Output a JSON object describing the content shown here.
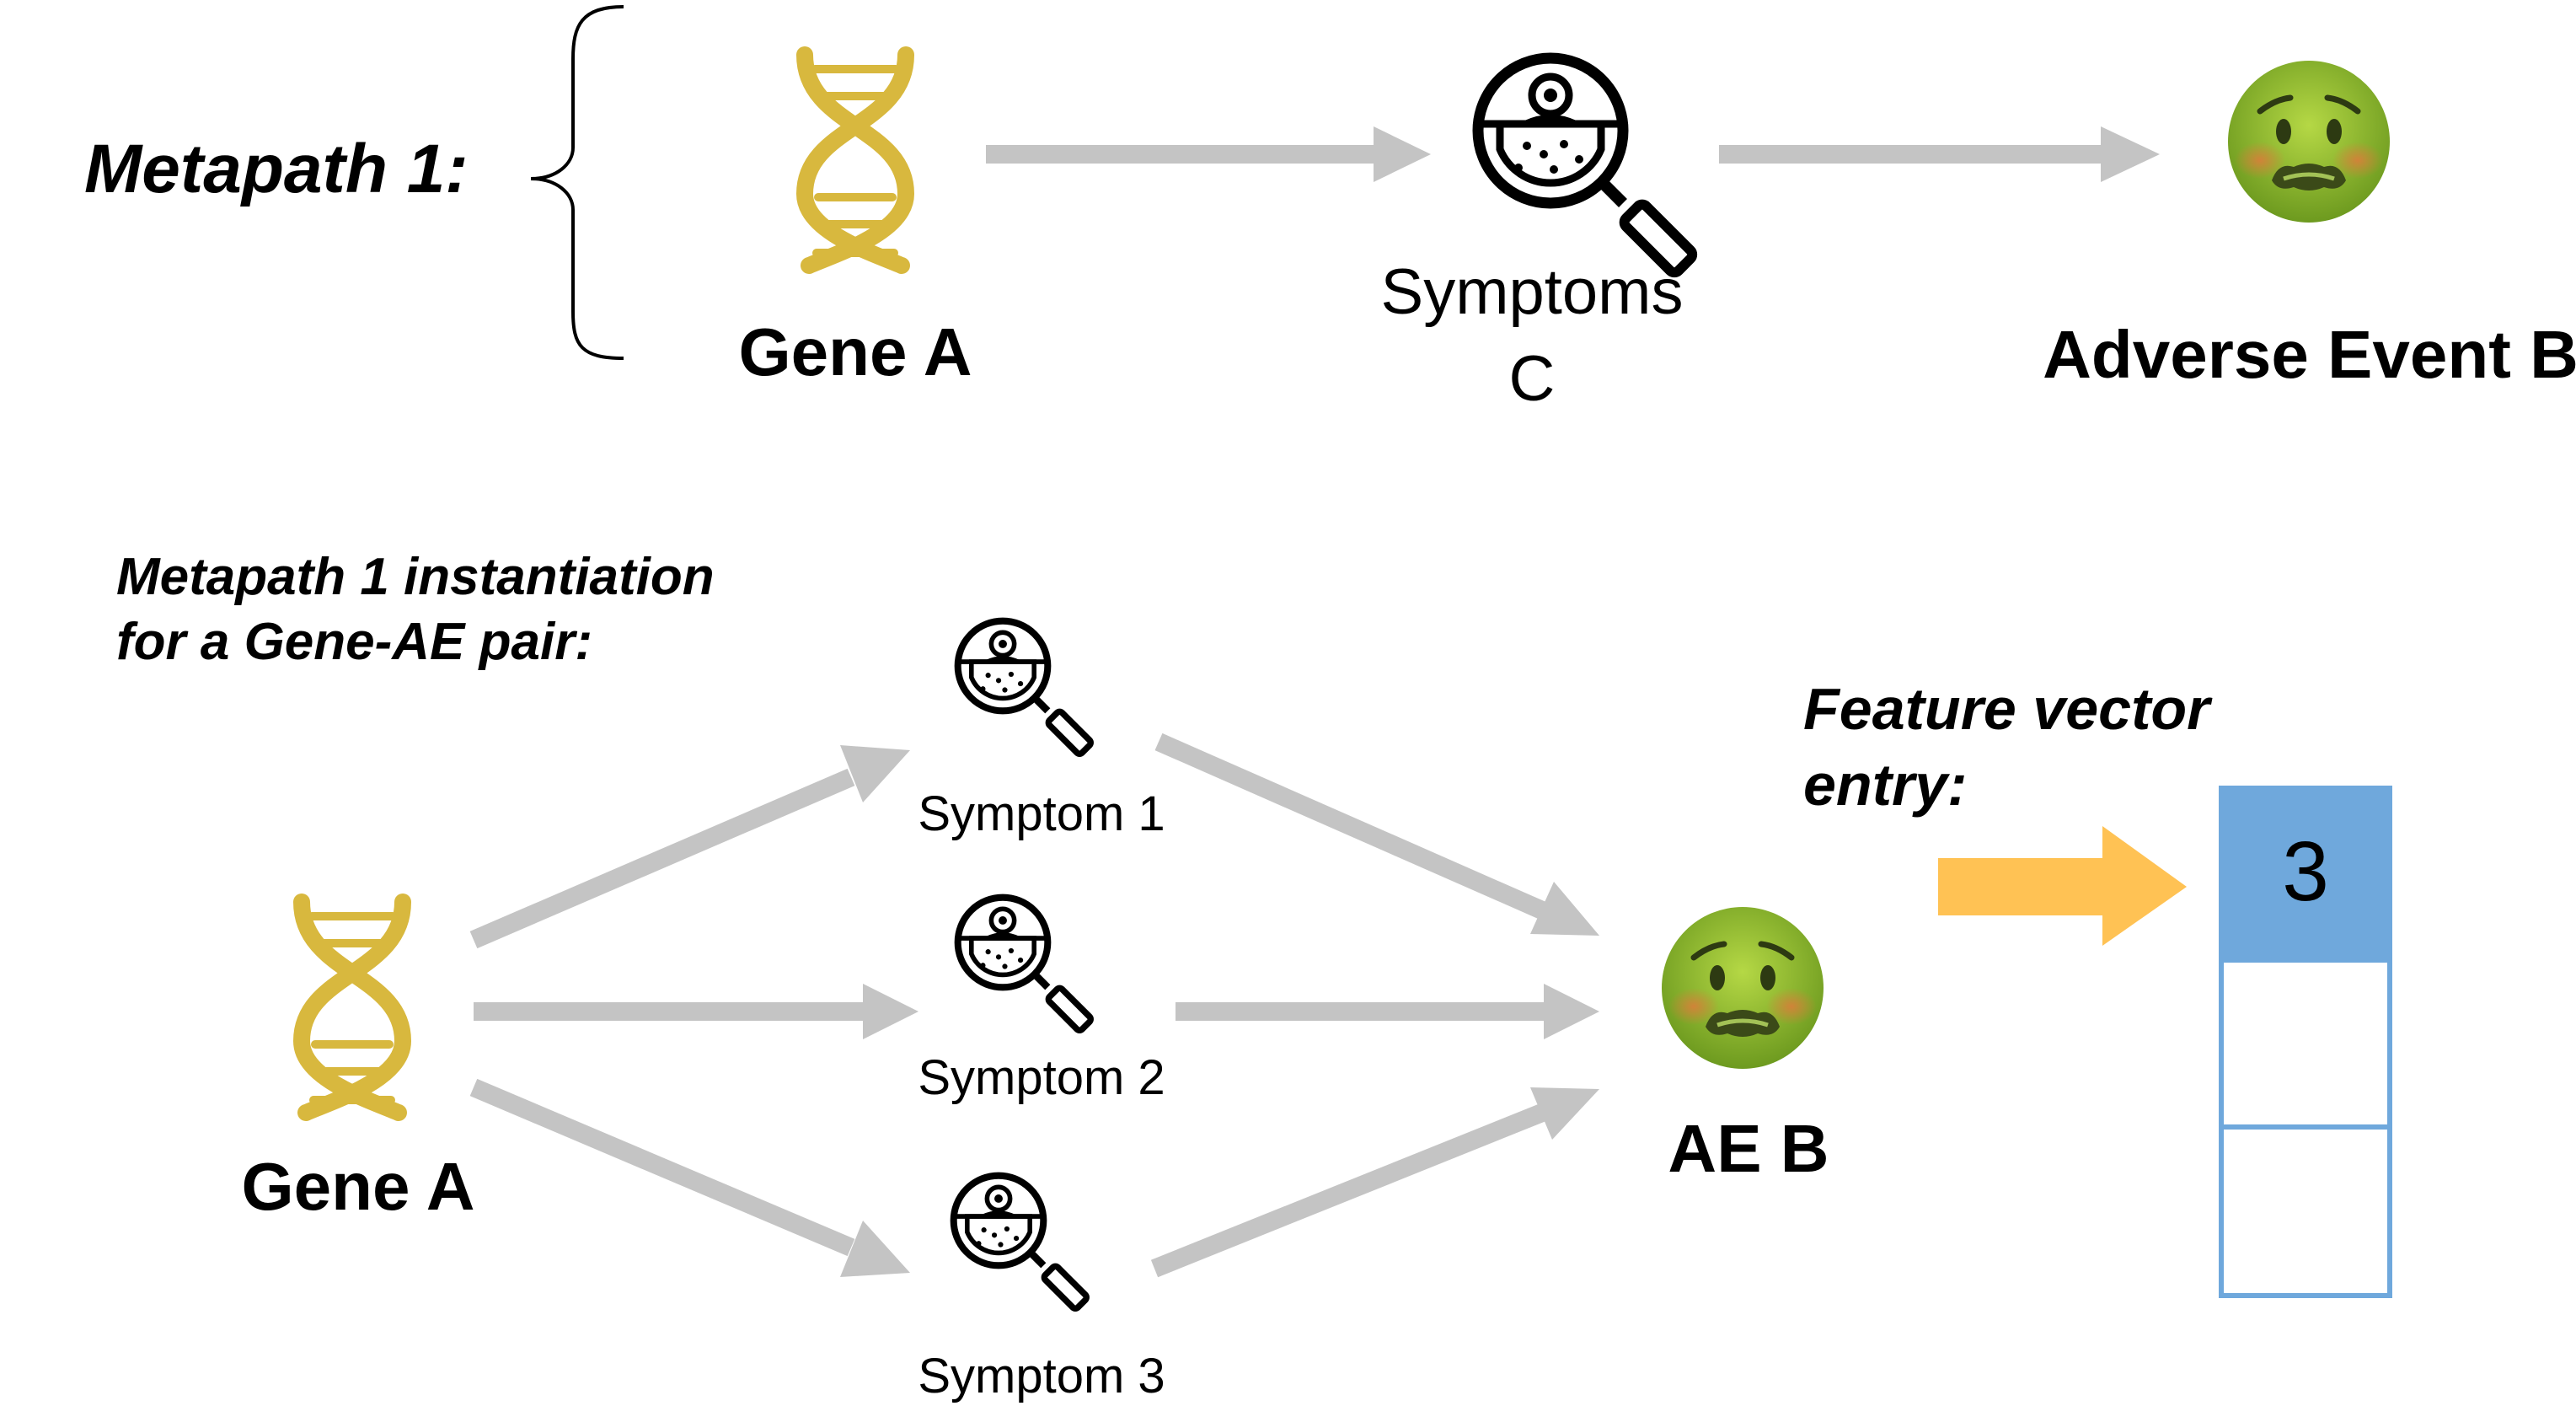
{
  "colors": {
    "arrow": "#c4c4c4",
    "feature_arrow": "#ffc254",
    "dna": "#d8b83e",
    "vector_filled": "#6fa8dc",
    "vector_border": "#6fa8dc",
    "face_green": "#8fbf2c",
    "icon": "#000000"
  },
  "icons": {
    "gene": "dna-icon",
    "symptom": "magnifier-skin-icon",
    "adverse_event": "nauseated-face-icon"
  },
  "metapath": {
    "label": "Metapath 1:",
    "gene_label": "Gene A",
    "symptom_label_line1": "Symptoms",
    "symptom_label_line2": "C",
    "ae_label": "Adverse Event B"
  },
  "instantiation": {
    "title_line1": "Metapath 1 instantiation",
    "title_line2": "for a Gene-AE pair:",
    "gene_label": "Gene A",
    "symptoms": [
      "Symptom 1",
      "Symptom 2",
      "Symptom 3"
    ],
    "ae_label": "AE B"
  },
  "feature": {
    "label_line1": "Feature vector",
    "label_line2": "entry:",
    "values": [
      "3",
      "",
      ""
    ]
  }
}
